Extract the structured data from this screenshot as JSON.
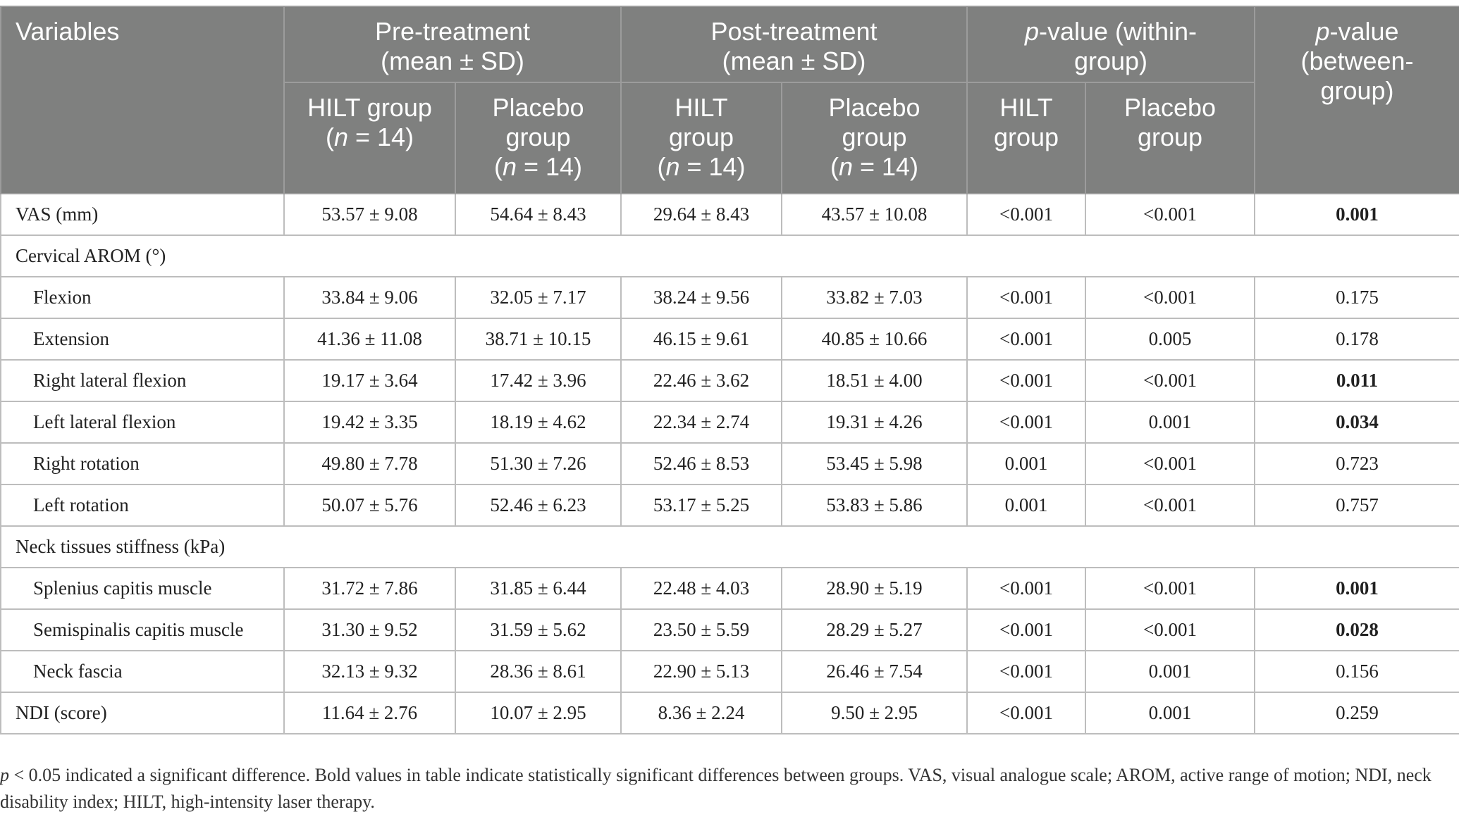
{
  "header": {
    "variables": "Variables",
    "pre_treatment": "Pre-treatment (mean ± SD)",
    "post_treatment": "Post-treatment (mean ± SD)",
    "p_within_italic": "p",
    "p_within_rest": "-value (within-group)",
    "p_between_italic": "p",
    "p_between_rest": "-value (between-group)",
    "hilt_group": "HILT group",
    "placebo_group": "Placebo group",
    "n_open": "(",
    "n_italic": "n",
    "n_rest": " = 14)"
  },
  "rows": [
    {
      "type": "data",
      "label": "VAS (mm)",
      "sub": false,
      "pre_hilt": "53.57 ± 9.08",
      "pre_placebo": "54.64 ± 8.43",
      "post_hilt": "29.64 ± 8.43",
      "post_placebo": "43.57 ± 10.08",
      "p_hilt": "<0.001",
      "p_placebo": "<0.001",
      "p_between": "0.001",
      "bold": true
    },
    {
      "type": "section",
      "label": "Cervical AROM (°)"
    },
    {
      "type": "data",
      "label": "Flexion",
      "sub": true,
      "pre_hilt": "33.84 ± 9.06",
      "pre_placebo": "32.05 ± 7.17",
      "post_hilt": "38.24 ± 9.56",
      "post_placebo": "33.82 ± 7.03",
      "p_hilt": "<0.001",
      "p_placebo": "<0.001",
      "p_between": "0.175",
      "bold": false
    },
    {
      "type": "data",
      "label": "Extension",
      "sub": true,
      "pre_hilt": "41.36 ± 11.08",
      "pre_placebo": "38.71 ± 10.15",
      "post_hilt": "46.15 ± 9.61",
      "post_placebo": "40.85 ± 10.66",
      "p_hilt": "<0.001",
      "p_placebo": "0.005",
      "p_between": "0.178",
      "bold": false
    },
    {
      "type": "data",
      "label": "Right lateral flexion",
      "sub": true,
      "pre_hilt": "19.17 ± 3.64",
      "pre_placebo": "17.42 ± 3.96",
      "post_hilt": "22.46 ± 3.62",
      "post_placebo": "18.51 ± 4.00",
      "p_hilt": "<0.001",
      "p_placebo": "<0.001",
      "p_between": "0.011",
      "bold": true
    },
    {
      "type": "data",
      "label": "Left lateral flexion",
      "sub": true,
      "pre_hilt": "19.42 ± 3.35",
      "pre_placebo": "18.19 ± 4.62",
      "post_hilt": "22.34 ± 2.74",
      "post_placebo": "19.31 ± 4.26",
      "p_hilt": "<0.001",
      "p_placebo": "0.001",
      "p_between": "0.034",
      "bold": true
    },
    {
      "type": "data",
      "label": "Right rotation",
      "sub": true,
      "pre_hilt": "49.80 ± 7.78",
      "pre_placebo": "51.30 ± 7.26",
      "post_hilt": "52.46 ± 8.53",
      "post_placebo": "53.45 ± 5.98",
      "p_hilt": "0.001",
      "p_placebo": "<0.001",
      "p_between": "0.723",
      "bold": false
    },
    {
      "type": "data",
      "label": "Left rotation",
      "sub": true,
      "pre_hilt": "50.07 ± 5.76",
      "pre_placebo": "52.46 ± 6.23",
      "post_hilt": "53.17 ± 5.25",
      "post_placebo": "53.83 ± 5.86",
      "p_hilt": "0.001",
      "p_placebo": "<0.001",
      "p_between": "0.757",
      "bold": false
    },
    {
      "type": "section",
      "label": "Neck tissues stiffness (kPa)"
    },
    {
      "type": "data",
      "label": "Splenius capitis muscle",
      "sub": true,
      "pre_hilt": "31.72 ± 7.86",
      "pre_placebo": "31.85 ± 6.44",
      "post_hilt": "22.48 ± 4.03",
      "post_placebo": "28.90 ± 5.19",
      "p_hilt": "<0.001",
      "p_placebo": "<0.001",
      "p_between": "0.001",
      "bold": true
    },
    {
      "type": "data",
      "label": "Semispinalis capitis muscle",
      "sub": true,
      "pre_hilt": "31.30 ± 9.52",
      "pre_placebo": "31.59 ± 5.62",
      "post_hilt": "23.50 ± 5.59",
      "post_placebo": "28.29 ± 5.27",
      "p_hilt": "<0.001",
      "p_placebo": "<0.001",
      "p_between": "0.028",
      "bold": true
    },
    {
      "type": "data",
      "label": "Neck fascia",
      "sub": true,
      "pre_hilt": "32.13 ± 9.32",
      "pre_placebo": "28.36 ± 8.61",
      "post_hilt": "22.90 ± 5.13",
      "post_placebo": "26.46 ± 7.54",
      "p_hilt": "<0.001",
      "p_placebo": "0.001",
      "p_between": "0.156",
      "bold": false
    },
    {
      "type": "data",
      "label": "NDI (score)",
      "sub": false,
      "pre_hilt": "11.64 ± 2.76",
      "pre_placebo": "10.07 ± 2.95",
      "post_hilt": "8.36 ± 2.24",
      "post_placebo": "9.50 ± 2.95",
      "p_hilt": "<0.001",
      "p_placebo": "0.001",
      "p_between": "0.259",
      "bold": false
    }
  ],
  "footnote": {
    "p_italic": "p",
    "text": " < 0.05 indicated a significant difference. Bold values in table indicate statistically significant differences between groups. VAS, visual analogue scale; AROM, active range of motion; NDI, neck disability index; HILT, high-intensity laser therapy."
  }
}
